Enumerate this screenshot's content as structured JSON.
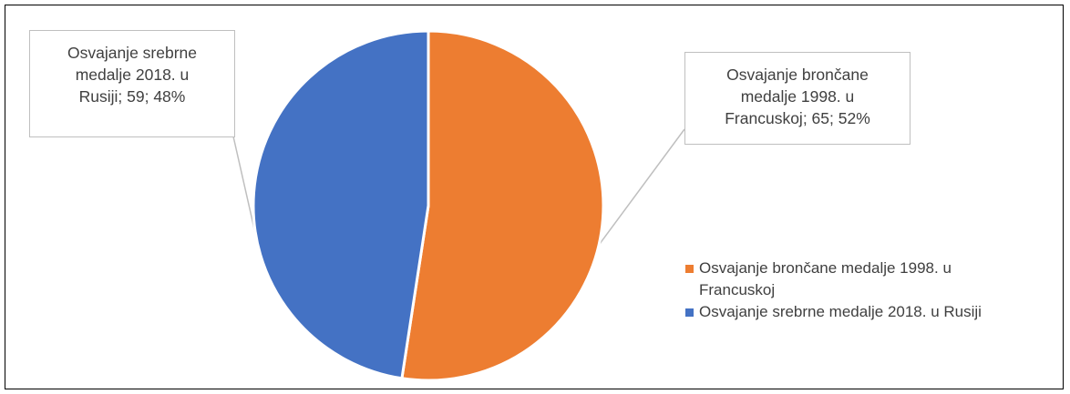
{
  "chart_data": {
    "type": "pie",
    "title": "",
    "slices": [
      {
        "label": "Osvajanje brončane medalje 1998. u Francuskoj",
        "value": 65,
        "percent": 52,
        "color": "#ED7D31",
        "data_label_lines": [
          "Osvajanje brončane",
          "medalje 1998. u",
          "Francuskoj; 65; 52%"
        ]
      },
      {
        "label": "Osvajanje srebrne medalje 2018. u Rusiji",
        "value": 59,
        "percent": 48,
        "color": "#4472C4",
        "data_label_lines": [
          "Osvajanje srebrne",
          "medalje 2018. u",
          "Rusiji; 59; 48%"
        ]
      }
    ],
    "legend": {
      "placement": "right",
      "items": [
        {
          "label_lines": [
            "Osvajanje brončane medalje 1998. u",
            "Francuskoj"
          ],
          "color": "#ED7D31"
        },
        {
          "label_lines": [
            "Osvajanje srebrne medalje 2018. u Rusiji"
          ],
          "color": "#4472C4"
        }
      ]
    }
  }
}
